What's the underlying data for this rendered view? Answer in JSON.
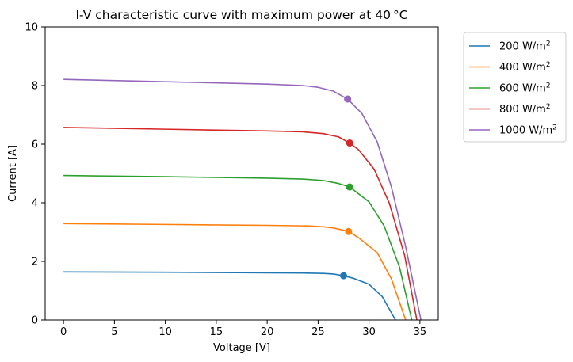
{
  "chart_data": {
    "type": "line",
    "title": "I-V characteristic curve with maximum power at 40",
    "title_unit": "°C",
    "xlabel": "Voltage [V]",
    "ylabel": "Current [A]",
    "xlim": [
      -1.8,
      36.8
    ],
    "ylim": [
      0,
      10
    ],
    "xticks": [
      0,
      5,
      10,
      15,
      20,
      25,
      30,
      35
    ],
    "yticks": [
      0,
      2,
      4,
      6,
      8,
      10
    ],
    "grid": false,
    "legend_placement": "outside-top-right",
    "series": [
      {
        "name": "200 W/m",
        "name_sup": "2",
        "color": "#1f77b4",
        "x": [
          0,
          10,
          20,
          24,
          25.5,
          26.5,
          27.5,
          28.5,
          30,
          31.3,
          32.6
        ],
        "y": [
          1.64,
          1.63,
          1.61,
          1.6,
          1.59,
          1.57,
          1.51,
          1.42,
          1.22,
          0.8,
          0
        ],
        "mpp": {
          "x": 27.5,
          "y": 1.51
        }
      },
      {
        "name": "400 W/m",
        "name_sup": "2",
        "color": "#ff7f0e",
        "x": [
          0,
          10,
          20,
          24,
          25.5,
          26.5,
          27.3,
          28,
          29,
          30.8,
          32.2,
          33.6
        ],
        "y": [
          3.29,
          3.26,
          3.23,
          3.21,
          3.18,
          3.14,
          3.08,
          3.02,
          2.8,
          2.3,
          1.4,
          0
        ],
        "mpp": {
          "x": 28.0,
          "y": 3.02
        }
      },
      {
        "name": "600 W/m",
        "name_sup": "2",
        "color": "#2ca02c",
        "x": [
          0,
          10,
          20,
          23.5,
          25.5,
          27,
          28.1,
          30,
          31.5,
          33,
          34.2
        ],
        "y": [
          4.93,
          4.89,
          4.84,
          4.81,
          4.76,
          4.66,
          4.54,
          4.03,
          3.2,
          1.8,
          0
        ],
        "mpp": {
          "x": 28.1,
          "y": 4.54
        }
      },
      {
        "name": "800 W/m",
        "name_sup": "2",
        "color": "#d62728",
        "x": [
          0,
          10,
          20,
          23.5,
          25.5,
          27,
          28.1,
          29,
          30.5,
          32,
          33.5,
          34.7
        ],
        "y": [
          6.57,
          6.51,
          6.45,
          6.42,
          6.36,
          6.25,
          6.04,
          5.8,
          5.15,
          3.98,
          2.2,
          0
        ],
        "mpp": {
          "x": 28.1,
          "y": 6.04
        }
      },
      {
        "name": "1000 W/m",
        "name_sup": "2",
        "color": "#9467bd",
        "x": [
          0,
          10,
          20,
          23.5,
          25,
          26.5,
          27.9,
          29.3,
          30.8,
          32.2,
          33.6,
          35.1
        ],
        "y": [
          8.21,
          8.13,
          8.05,
          8.0,
          7.94,
          7.81,
          7.54,
          7.05,
          6.08,
          4.54,
          2.5,
          0
        ],
        "mpp": {
          "x": 27.9,
          "y": 7.54
        }
      }
    ]
  }
}
